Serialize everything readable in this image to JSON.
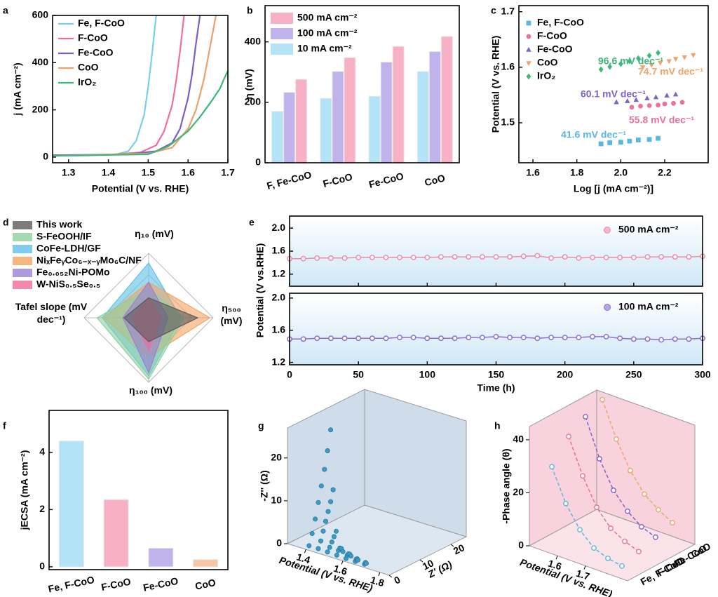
{
  "chart_data": [
    {
      "type": "line",
      "label": "a",
      "xlabel": "Potential (V vs. RHE)",
      "ylabel": "j (mA cm⁻²)",
      "xlim": [
        1.26,
        1.7
      ],
      "ylim": [
        -24,
        600
      ],
      "xticks": [
        1.3,
        1.4,
        1.5,
        1.6,
        1.7
      ],
      "yticks": [
        0,
        200,
        400,
        600
      ],
      "legend": "upper left",
      "series": [
        {
          "name": "Fe, F-CoO",
          "color": "#79cfe8",
          "x": [
            1.26,
            1.35,
            1.42,
            1.45,
            1.47,
            1.49,
            1.5,
            1.51,
            1.52
          ],
          "values": [
            5,
            7,
            12,
            25,
            70,
            180,
            300,
            440,
            600
          ]
        },
        {
          "name": "F-CoO",
          "color": "#ef6f9a",
          "x": [
            1.26,
            1.4,
            1.48,
            1.52,
            1.54,
            1.56,
            1.57,
            1.58,
            1.59
          ],
          "values": [
            6,
            10,
            20,
            50,
            110,
            220,
            320,
            450,
            600
          ]
        },
        {
          "name": "Fe-CoO",
          "color": "#7b5cc9",
          "x": [
            1.26,
            1.45,
            1.52,
            1.56,
            1.58,
            1.6,
            1.61,
            1.62,
            1.63
          ],
          "values": [
            8,
            12,
            25,
            60,
            120,
            250,
            350,
            480,
            600
          ]
        },
        {
          "name": "CoO",
          "color": "#eea06a",
          "x": [
            1.26,
            1.5,
            1.56,
            1.6,
            1.62,
            1.64,
            1.65,
            1.66,
            1.67
          ],
          "values": [
            5,
            15,
            40,
            120,
            200,
            330,
            420,
            510,
            600
          ]
        },
        {
          "name": "IrO₂",
          "color": "#3cb878",
          "x": [
            1.26,
            1.5,
            1.55,
            1.6,
            1.63,
            1.66,
            1.68,
            1.69,
            1.7
          ],
          "values": [
            5,
            12,
            45,
            110,
            170,
            240,
            290,
            330,
            365
          ]
        }
      ]
    },
    {
      "type": "bar",
      "label": "b",
      "ylabel": "η (mV)",
      "categories": [
        "F, Fe-CoO",
        "F-CoO",
        "Fe-CoO",
        "CoO"
      ],
      "ylim": [
        0,
        520
      ],
      "yticks": [
        0,
        200,
        400
      ],
      "legend": "upper left",
      "series": [
        {
          "name": "10 mA cm⁻²",
          "color": "#b3e3f6",
          "values": [
            170,
            213,
            220,
            302
          ]
        },
        {
          "name": "100 mA cm⁻²",
          "color": "#c0b2ea",
          "values": [
            233,
            302,
            333,
            368
          ]
        },
        {
          "name": "500 mA cm⁻²",
          "color": "#f7b0c4",
          "values": [
            276,
            348,
            385,
            418
          ]
        }
      ]
    },
    {
      "type": "scatter",
      "label": "c",
      "xlabel": "Log [j (mA cm⁻²)]",
      "ylabel": "Potential (V vs. RHE)",
      "xlim": [
        1.536,
        2.398
      ],
      "ylim": [
        1.428,
        1.711
      ],
      "xticks": [
        1.6,
        1.8,
        {
          "value": 2,
          "label": "2.0"
        },
        2.2
      ],
      "yticks": [
        1.5,
        1.6,
        1.7
      ],
      "legend": "upper left",
      "series": [
        {
          "name": "Fe, F-CoO",
          "color": "#5ab7e2",
          "marker": "square",
          "annotation": "41.6 mV dec⁻¹",
          "x": [
            1.91,
            1.95,
            2.0,
            2.04,
            2.08,
            2.13,
            2.17
          ],
          "values": [
            1.462,
            1.464,
            1.465,
            1.467,
            1.469,
            1.47,
            1.472
          ]
        },
        {
          "name": "F-CoO",
          "color": "#ec7098",
          "marker": "circle",
          "annotation": "55.8 mV dec⁻¹",
          "x": [
            2.05,
            2.09,
            2.13,
            2.17,
            2.2,
            2.24,
            2.28
          ],
          "values": [
            1.528,
            1.53,
            1.531,
            1.532,
            1.534,
            1.535,
            1.537
          ]
        },
        {
          "name": "Fe-CoO",
          "color": "#7e62c8",
          "marker": "triangle",
          "annotation": "60.1 mV dec⁻¹",
          "x": [
            1.98,
            2.03,
            2.07,
            2.12,
            2.16,
            2.21,
            2.25
          ],
          "values": [
            1.537,
            1.539,
            1.541,
            1.544,
            1.546,
            1.549,
            1.551
          ]
        },
        {
          "name": "CoO",
          "color": "#f0a36b",
          "marker": "triangle-down",
          "annotation": "74.7 mV dec⁻¹",
          "x": [
            2.1,
            2.14,
            2.18,
            2.22,
            2.25,
            2.29,
            2.33
          ],
          "values": [
            1.6,
            1.604,
            1.608,
            1.611,
            1.615,
            1.618,
            1.622
          ]
        },
        {
          "name": "IrO₂",
          "color": "#3cb878",
          "marker": "diamond",
          "annotation": "96.6 mV dec⁻¹",
          "x": [
            1.91,
            1.95,
            2.0,
            2.04,
            2.08,
            2.13,
            2.17
          ],
          "values": [
            1.596,
            1.601,
            1.606,
            1.611,
            1.616,
            1.621,
            1.626
          ]
        }
      ]
    },
    {
      "type": "radar",
      "label": "d",
      "axes": [
        "η₁₀ (mV)",
        "η₅₀₀ (mV)",
        "η₁₀₀ (mV)",
        "Tafel slope (mV dec⁻¹)"
      ],
      "rlim": [
        0,
        1
      ],
      "series": [
        {
          "name": "This work",
          "color": "#5a5a5a",
          "values": [
            0.31,
            0.76,
            0.37,
            0.38
          ]
        },
        {
          "name": "S-FeOOH/IF",
          "color": "#8fd19e",
          "values": [
            0.45,
            0.55,
            0.95,
            0.8
          ]
        },
        {
          "name": "CoFe-LDH/GF",
          "color": "#5ec0ea",
          "values": [
            0.85,
            0.5,
            0.9,
            0.72
          ]
        },
        {
          "name": "NiₓFeᵧCo₆₋ₓ₋ᵧMo₆C/NF",
          "color": "#f4a460",
          "values": [
            0.55,
            0.95,
            0.6,
            0.7
          ]
        },
        {
          "name": "Fe₀.₀₅₂Ni-POMo",
          "color": "#9b7fd4",
          "values": [
            0.55,
            0.3,
            0.85,
            0.4
          ]
        },
        {
          "name": "W-NiS₀.₅Se₀.₅",
          "color": "#f06a9a",
          "values": [
            0.3,
            0.2,
            0.5,
            0.25
          ]
        }
      ]
    },
    {
      "type": "multiline",
      "label": "e",
      "xlabel": "Time (h)",
      "ylabel": "Potential (V vs.RHE)",
      "xlim": [
        0,
        300
      ],
      "xticks": [
        0,
        50,
        100,
        150,
        200,
        250,
        300
      ],
      "x": [
        0,
        10,
        20,
        30,
        40,
        50,
        60,
        70,
        80,
        90,
        100,
        110,
        120,
        130,
        140,
        150,
        160,
        170,
        180,
        190,
        200,
        210,
        220,
        230,
        240,
        250,
        260,
        270,
        280,
        290,
        300
      ],
      "panels": [
        {
          "ylim": [
            0.99,
            2.21
          ],
          "yticks": [
            1.2,
            1.6,
            {
              "value": 2,
              "label": "2.0"
            }
          ],
          "series": [
            {
              "name": "500 mA cm⁻²",
              "color": "#f08aa8",
              "values": [
                1.47,
                1.47,
                1.48,
                1.48,
                1.48,
                1.49,
                1.49,
                1.49,
                1.49,
                1.49,
                1.49,
                1.5,
                1.5,
                1.5,
                1.5,
                1.5,
                1.5,
                1.51,
                1.52,
                1.48,
                1.5,
                1.48,
                1.49,
                1.49,
                1.49,
                1.49,
                1.5,
                1.5,
                1.5,
                1.5,
                1.51
              ]
            }
          ]
        },
        {
          "ylim": [
            1.17,
            2.06
          ],
          "yticks": [
            1.2,
            1.6,
            {
              "value": 2,
              "label": "2.0"
            }
          ],
          "series": [
            {
              "name": "100 mA cm⁻²",
              "color": "#8a6fd6",
              "values": [
                1.49,
                1.49,
                1.5,
                1.5,
                1.5,
                1.5,
                1.5,
                1.5,
                1.51,
                1.51,
                1.5,
                1.5,
                1.5,
                1.51,
                1.51,
                1.52,
                1.51,
                1.51,
                1.5,
                1.51,
                1.51,
                1.51,
                1.52,
                1.52,
                1.5,
                1.49,
                1.49,
                1.48,
                1.49,
                1.49,
                1.5
              ]
            }
          ]
        }
      ]
    },
    {
      "type": "bar",
      "label": "f",
      "ylabel": "jECSA (mA cm⁻²)",
      "categories": [
        "Fe, F-CoO",
        "F-CoO",
        "Fe-CoO",
        "CoO"
      ],
      "values": [
        4.4,
        2.35,
        0.65,
        0.25
      ],
      "colors": [
        "#b3e3f6",
        "#f7b0c4",
        "#c0b2ea",
        "#f7c6a4"
      ],
      "ylim": [
        -0.1,
        5.47
      ],
      "yticks": [
        0,
        2,
        4
      ]
    },
    {
      "type": "scatter3d",
      "label": "g",
      "xlabel": "Potential (V vs. RHE)",
      "ylabel": "Z' (Ω)",
      "zlabel": "-Z'' (Ω)",
      "xlim": [
        1.3,
        1.85
      ],
      "xticks": [
        1.4,
        1.6,
        1.8
      ],
      "ylim": [
        0,
        25
      ],
      "yticks": [
        0,
        10,
        20
      ],
      "zlim": [
        0,
        27
      ],
      "zticks": [
        0,
        10,
        20
      ],
      "color": "#3d9ac0",
      "series": [
        {
          "potential": 1.4,
          "y": [
            1,
            2,
            3,
            4,
            5,
            6,
            7,
            8
          ],
          "values": [
            0.5,
            3,
            6,
            9.5,
            13,
            16.5,
            20.5,
            25
          ]
        },
        {
          "potential": 1.45,
          "y": [
            1,
            1.8,
            2.6,
            3.4,
            4.2,
            5,
            5.8
          ],
          "values": [
            0.5,
            2,
            4,
            6,
            8,
            10,
            12.5
          ]
        },
        {
          "potential": 1.5,
          "y": [
            1,
            1.7,
            2.4,
            3.1,
            3.8
          ],
          "values": [
            0.4,
            1.2,
            2.2,
            3.2,
            4.2
          ]
        },
        {
          "potential": 1.55,
          "y": [
            1,
            1.5,
            2,
            2.5,
            3
          ],
          "values": [
            0.3,
            1.2,
            1.6,
            1.3,
            0.4
          ]
        },
        {
          "potential": 1.6,
          "y": [
            1,
            1.4,
            1.8,
            2.2,
            2.6
          ],
          "values": [
            0.2,
            0.8,
            1,
            0.8,
            0.2
          ]
        },
        {
          "potential": 1.65,
          "y": [
            1,
            1.3,
            1.6,
            1.9
          ],
          "values": [
            0.2,
            0.6,
            0.6,
            0.2
          ]
        },
        {
          "potential": 1.7,
          "y": [
            1,
            1.3,
            1.6
          ],
          "values": [
            0.2,
            0.5,
            0.2
          ]
        }
      ]
    },
    {
      "type": "line3d",
      "label": "h",
      "xlabel": "Potential (V vs. RHE)",
      "zlabel": "-Phase angle (θ)",
      "xlim": [
        1.5,
        1.85
      ],
      "xticks": [
        1.6,
        1.7
      ],
      "zlim": [
        0,
        45
      ],
      "zticks": [
        0,
        20,
        40
      ],
      "categories": [
        "Fe, F-CoO",
        "F-CoO",
        "Fe-CoO",
        "CoO"
      ],
      "series": [
        {
          "color": "#5ab7e2",
          "x": [
            1.55,
            1.6,
            1.65,
            1.7,
            1.75,
            1.8
          ],
          "values": [
            30,
            18,
            10,
            5,
            3,
            2
          ]
        },
        {
          "color": "#ec7098",
          "x": [
            1.55,
            1.6,
            1.65,
            1.7,
            1.75,
            1.8
          ],
          "values": [
            38,
            25,
            15,
            9,
            6,
            4
          ]
        },
        {
          "color": "#7e62c8",
          "x": [
            1.55,
            1.6,
            1.65,
            1.7,
            1.75,
            1.8
          ],
          "values": [
            42,
            28,
            18,
            12,
            8,
            6
          ]
        },
        {
          "color": "#f0a36b",
          "x": [
            1.55,
            1.6,
            1.65,
            1.7,
            1.75,
            1.8
          ],
          "values": [
            45,
            32,
            22,
            15,
            11,
            8
          ]
        }
      ]
    }
  ]
}
